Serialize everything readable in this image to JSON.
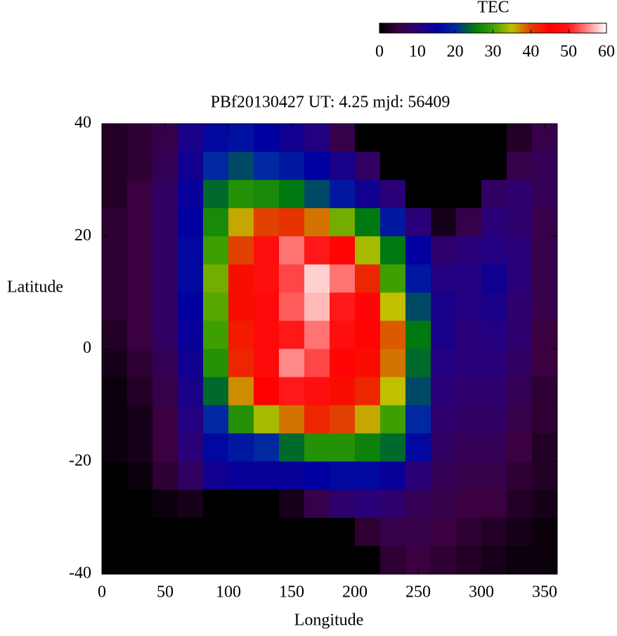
{
  "chart_data": {
    "type": "heatmap",
    "title": "PBf20130427  UT: 4.25  mjd: 56409",
    "xlabel": "Longitude",
    "ylabel": "Latitude",
    "colorbar_label": "TEC",
    "colormap": [
      "#000000",
      "#3a0040",
      "#2a0078",
      "#0000a0",
      "#0028a0",
      "#007a10",
      "#3ea000",
      "#c0c000",
      "#e04000",
      "#ff0000",
      "#ff1818",
      "#ff8a8a",
      "#ffffff"
    ],
    "clim": [
      0,
      60
    ],
    "cticks": [
      0,
      10,
      20,
      30,
      40,
      50,
      60
    ],
    "xlim": [
      0,
      360
    ],
    "xticks": [
      0,
      50,
      100,
      150,
      200,
      250,
      300,
      350
    ],
    "ylim": [
      -40,
      40
    ],
    "yticks": [
      -40,
      -20,
      0,
      20,
      40
    ],
    "x": [
      10,
      30,
      50,
      70,
      90,
      110,
      130,
      150,
      170,
      190,
      210,
      230,
      250,
      270,
      290,
      310,
      330,
      350
    ],
    "y": [
      37.5,
      32.5,
      27.5,
      22.5,
      17.5,
      12.5,
      7.5,
      2.5,
      -2.5,
      -7.5,
      -12.5,
      -17.5,
      -22.5,
      -27.5,
      -32.5,
      -37.5
    ],
    "z": [
      [
        3,
        4,
        6,
        12,
        16,
        17,
        15,
        13,
        11,
        6,
        0,
        0,
        0,
        0,
        0,
        0,
        3,
        6
      ],
      [
        3,
        4,
        7,
        13,
        20,
        22,
        20,
        18,
        15,
        12,
        8,
        0,
        0,
        0,
        0,
        0,
        6,
        7
      ],
      [
        3,
        5,
        8,
        14,
        24,
        28,
        27,
        25,
        22,
        18,
        13,
        10,
        0,
        0,
        0,
        8,
        9,
        7
      ],
      [
        4,
        5,
        8,
        15,
        27,
        36,
        40,
        41,
        38,
        32,
        25,
        18,
        10,
        2,
        6,
        10,
        9,
        6
      ],
      [
        4,
        5,
        8,
        16,
        30,
        40,
        48,
        54,
        50,
        46,
        34,
        25,
        15,
        9,
        10,
        11,
        10,
        6
      ],
      [
        4,
        5,
        8,
        16,
        32,
        44,
        48,
        52,
        58,
        54,
        42,
        30,
        18,
        11,
        11,
        13,
        10,
        6
      ],
      [
        4,
        5,
        8,
        15,
        31,
        44,
        47,
        53,
        57,
        50,
        46,
        35,
        22,
        12,
        11,
        12,
        9,
        6
      ],
      [
        3,
        5,
        8,
        14,
        30,
        43,
        47,
        50,
        54,
        48,
        46,
        39,
        25,
        12,
        10,
        11,
        9,
        5
      ],
      [
        2,
        4,
        7,
        13,
        28,
        42,
        47,
        55,
        52,
        46,
        44,
        38,
        24,
        11,
        10,
        10,
        8,
        5
      ],
      [
        1,
        3,
        6,
        12,
        24,
        37,
        45,
        50,
        48,
        44,
        42,
        35,
        22,
        10,
        9,
        9,
        7,
        4
      ],
      [
        1,
        2,
        5,
        11,
        20,
        28,
        34,
        38,
        42,
        40,
        36,
        30,
        20,
        9,
        8,
        8,
        6,
        4
      ],
      [
        1,
        2,
        5,
        10,
        16,
        18,
        20,
        24,
        28,
        28,
        26,
        24,
        16,
        8,
        7,
        7,
        5,
        3
      ],
      [
        0,
        1,
        4,
        8,
        13,
        14,
        14,
        14,
        15,
        16,
        16,
        14,
        10,
        7,
        6,
        6,
        4,
        3
      ],
      [
        0,
        0,
        1,
        2,
        0,
        0,
        0,
        2,
        6,
        9,
        10,
        9,
        7,
        6,
        5,
        5,
        3,
        2
      ],
      [
        0,
        0,
        0,
        0,
        0,
        0,
        0,
        0,
        0,
        0,
        4,
        6,
        6,
        5,
        4,
        3,
        2,
        1
      ],
      [
        0,
        0,
        0,
        0,
        0,
        0,
        0,
        0,
        0,
        0,
        0,
        4,
        5,
        4,
        3,
        2,
        1,
        1
      ]
    ]
  }
}
